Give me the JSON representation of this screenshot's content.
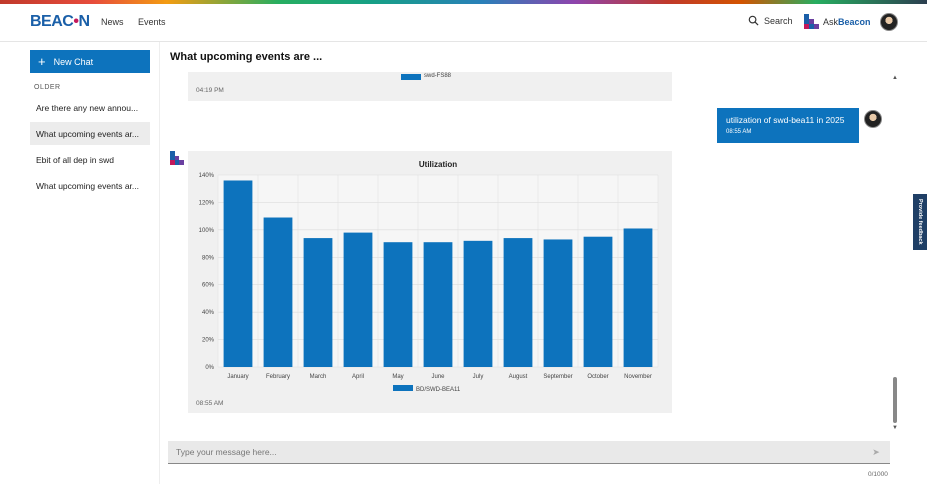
{
  "header": {
    "logo": {
      "prefix": "BEAC",
      "o": "•",
      "suffix": "N"
    },
    "nav": [
      "News",
      "Events"
    ],
    "search_label": "Search",
    "ask_prefix": "Ask",
    "ask_brand": "Beacon"
  },
  "sidebar": {
    "new_chat_label": "New Chat",
    "section_label": "OLDER",
    "history": [
      "Are there any new annou...",
      "What upcoming events ar...",
      "Ebit of all dep in swd",
      "What upcoming events ar..."
    ],
    "active_index": 1
  },
  "chat": {
    "title": "What upcoming events are ...",
    "previous": {
      "legend": "swd-FS88",
      "time": "04:19 PM"
    },
    "user_message": {
      "text": "utilization of swd-bea11 in 2025",
      "time": "08:55 AM"
    },
    "bot_message": {
      "time": "08:55 AM"
    }
  },
  "input": {
    "placeholder": "Type your message here...",
    "value": "",
    "counter": "0/1000"
  },
  "feedback_label": "Provide feedback",
  "colors": {
    "primary": "#0d73bd",
    "bar": "#0d73bd",
    "feedback": "#1f3f66"
  },
  "chart_data": {
    "type": "bar",
    "title": "Utilization",
    "categories": [
      "January",
      "February",
      "March",
      "April",
      "May",
      "June",
      "July",
      "August",
      "September",
      "October",
      "November"
    ],
    "series": [
      {
        "name": "BD/SWD-BEA11",
        "values": [
          136,
          109,
          94,
          98,
          91,
          91,
          92,
          94,
          93,
          95,
          101
        ]
      }
    ],
    "ylim": [
      0,
      140
    ],
    "yticks": [
      "0%",
      "20%",
      "40%",
      "60%",
      "80%",
      "100%",
      "120%",
      "140%"
    ],
    "ytick_values": [
      0,
      20,
      40,
      60,
      80,
      100,
      120,
      140
    ],
    "xlabel": "",
    "ylabel": "",
    "grid": true,
    "legend_position": "bottom"
  }
}
